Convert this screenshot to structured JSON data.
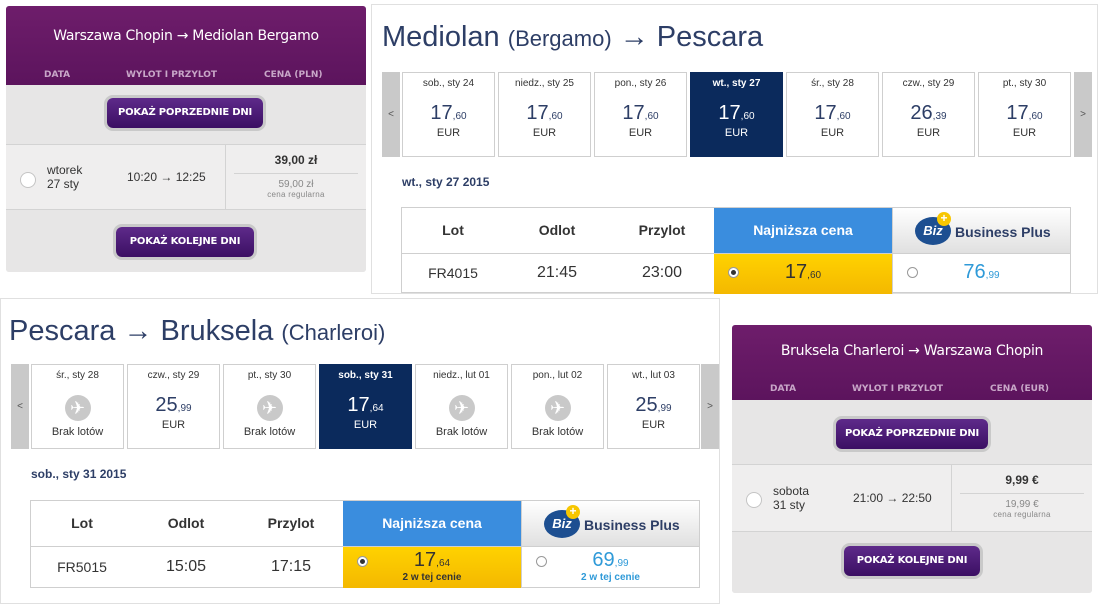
{
  "wizz_out": {
    "title": "Warszawa Chopin → Mediolan Bergamo",
    "columns": [
      "DATA",
      "WYLOT I PRZYLOT",
      "CENA (PLN)"
    ],
    "prev_button": "POKAŻ POPRZEDNIE DNI",
    "next_button": "POKAŻ KOLEJNE DNI",
    "flight": {
      "weekday": "wtorek",
      "date": "27 sty",
      "times": "10:20 → 12:25",
      "price": "39,00 zł",
      "regular_price": "59,00 zł",
      "regular_label": "cena regularna"
    }
  },
  "wizz_ret": {
    "title": "Bruksela Charleroi → Warszawa Chopin",
    "columns": [
      "DATA",
      "WYLOT I PRZYLOT",
      "CENA (EUR)"
    ],
    "prev_button": "POKAŻ POPRZEDNIE DNI",
    "next_button": "POKAŻ KOLEJNE DNI",
    "flight": {
      "weekday": "sobota",
      "date": "31 sty",
      "times": "21:00 → 22:50",
      "price": "9,99 €",
      "regular_price": "19,99 €",
      "regular_label": "cena regularna"
    }
  },
  "ryan_1": {
    "title_from": "Mediolan",
    "title_from_sub": "(Bergamo)",
    "title_arrow": "→",
    "title_to": "Pescara",
    "title_to_sub": "",
    "prev": "<",
    "next": ">",
    "days": [
      {
        "label": "sob., sty 24",
        "int": "17",
        "dec": "60",
        "cur": "EUR",
        "selected": false
      },
      {
        "label": "niedz., sty 25",
        "int": "17",
        "dec": "60",
        "cur": "EUR",
        "selected": false
      },
      {
        "label": "pon., sty 26",
        "int": "17",
        "dec": "60",
        "cur": "EUR",
        "selected": false
      },
      {
        "label": "wt., sty 27",
        "int": "17",
        "dec": "60",
        "cur": "EUR",
        "selected": true
      },
      {
        "label": "śr., sty 28",
        "int": "17",
        "dec": "60",
        "cur": "EUR",
        "selected": false
      },
      {
        "label": "czw., sty 29",
        "int": "26",
        "dec": "39",
        "cur": "EUR",
        "selected": false
      },
      {
        "label": "pt., sty 30",
        "int": "17",
        "dec": "60",
        "cur": "EUR",
        "selected": false
      }
    ],
    "selected_date": "wt., sty 27 2015",
    "headers": {
      "lot": "Lot",
      "odlot": "Odlot",
      "przylot": "Przylot",
      "cheap": "Najniższa cena",
      "biz": "Business Plus",
      "biz_logo": "Biz",
      "biz_plus": "+"
    },
    "row": {
      "lot": "FR4015",
      "odlot": "21:45",
      "przylot": "23:00",
      "cheap_int": "17",
      "cheap_dec": "60",
      "biz_int": "76",
      "biz_dec": "99"
    }
  },
  "ryan_2": {
    "title_from": "Pescara",
    "title_arrow": "→",
    "title_to": "Bruksela",
    "title_to_sub": "(Charleroi)",
    "prev": "<",
    "next": ">",
    "no_flights": "Brak lotów",
    "days": [
      {
        "label": "śr., sty 28",
        "int": "",
        "dec": "",
        "cur": "",
        "selected": false,
        "none": true
      },
      {
        "label": "czw., sty 29",
        "int": "25",
        "dec": "99",
        "cur": "EUR",
        "selected": false,
        "none": false
      },
      {
        "label": "pt., sty 30",
        "int": "",
        "dec": "",
        "cur": "",
        "selected": false,
        "none": true
      },
      {
        "label": "sob., sty 31",
        "int": "17",
        "dec": "64",
        "cur": "EUR",
        "selected": true,
        "none": false
      },
      {
        "label": "niedz., lut 01",
        "int": "",
        "dec": "",
        "cur": "",
        "selected": false,
        "none": true
      },
      {
        "label": "pon., lut 02",
        "int": "",
        "dec": "",
        "cur": "",
        "selected": false,
        "none": true
      },
      {
        "label": "wt., lut 03",
        "int": "25",
        "dec": "99",
        "cur": "EUR",
        "selected": false,
        "none": false
      }
    ],
    "selected_date": "sob., sty 31 2015",
    "headers": {
      "lot": "Lot",
      "odlot": "Odlot",
      "przylot": "Przylot",
      "cheap": "Najniższa cena",
      "biz": "Business Plus",
      "biz_logo": "Biz",
      "biz_plus": "+"
    },
    "row": {
      "lot": "FR5015",
      "odlot": "15:05",
      "przylot": "17:15",
      "cheap_int": "17",
      "cheap_dec": "64",
      "cheap_note": "2 w tej cenie",
      "biz_int": "69",
      "biz_dec": "99",
      "biz_note": "2 w tej cenie"
    }
  }
}
